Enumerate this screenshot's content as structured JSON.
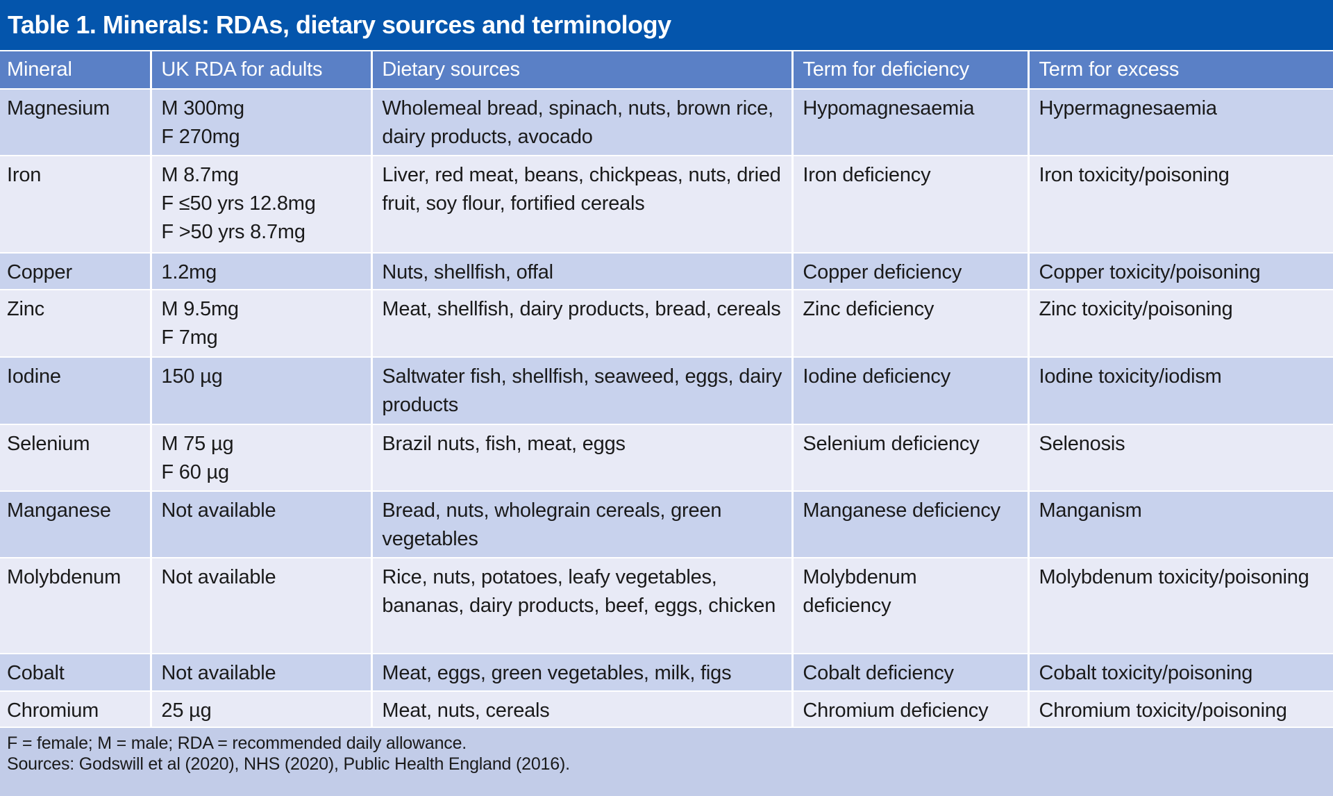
{
  "table": {
    "title": "Table 1. Minerals: RDAs, dietary sources and terminology",
    "columns": {
      "mineral": "Mineral",
      "rda": "UK RDA for adults",
      "sources": "Dietary sources",
      "deficiency": "Term for deficiency",
      "excess": "Term for excess"
    },
    "rows": [
      {
        "mineral": "Magnesium",
        "rda": [
          "M 300mg",
          "F 270mg"
        ],
        "sources": "Wholemeal bread, spinach, nuts, brown rice, dairy products, avocado",
        "deficiency": "Hypomagnesaemia",
        "excess": "Hypermagnesaemia"
      },
      {
        "mineral": "Iron",
        "rda": [
          "M 8.7mg",
          "F ≤50 yrs 12.8mg",
          "F >50 yrs 8.7mg"
        ],
        "sources": "Liver, red meat, beans, chickpeas, nuts, dried fruit, soy flour, fortified cereals",
        "deficiency": "Iron deficiency",
        "excess": "Iron toxicity/poisoning"
      },
      {
        "mineral": "Copper",
        "rda": [
          "1.2mg"
        ],
        "sources": "Nuts, shellfish, offal",
        "deficiency": "Copper deficiency",
        "excess": "Copper toxicity/poisoning"
      },
      {
        "mineral": "Zinc",
        "rda": [
          "M 9.5mg",
          "F 7mg"
        ],
        "sources": "Meat, shellfish, dairy products, bread, cereals",
        "deficiency": "Zinc deficiency",
        "excess": "Zinc toxicity/poisoning"
      },
      {
        "mineral": "Iodine",
        "rda": [
          "150 µg"
        ],
        "sources": "Saltwater fish, shellfish, seaweed, eggs, dairy products",
        "deficiency": "Iodine deficiency",
        "excess": "Iodine toxicity/iodism"
      },
      {
        "mineral": "Selenium",
        "rda": [
          "M 75 µg",
          "F 60 µg"
        ],
        "sources": "Brazil nuts, fish, meat, eggs",
        "deficiency": "Selenium deficiency",
        "excess": "Selenosis"
      },
      {
        "mineral": "Manganese",
        "rda": [
          "Not available"
        ],
        "sources": "Bread, nuts, wholegrain cereals, green vegetables",
        "deficiency": "Manganese deficiency",
        "excess": "Manganism"
      },
      {
        "mineral": "Molybdenum",
        "rda": [
          "Not available"
        ],
        "sources": "Rice, nuts, potatoes, leafy vegetables, bananas, dairy products, beef, eggs, chicken",
        "deficiency": "Molybdenum deficiency",
        "excess": "Molybdenum toxicity/poisoning"
      },
      {
        "mineral": "Cobalt",
        "rda": [
          "Not available"
        ],
        "sources": "Meat, eggs, green vegetables, milk, figs",
        "deficiency": "Cobalt deficiency",
        "excess": "Cobalt toxicity/poisoning"
      },
      {
        "mineral": "Chromium",
        "rda": [
          "25 µg"
        ],
        "sources": "Meat, nuts, cereals",
        "deficiency": "Chromium deficiency",
        "excess": "Chromium toxicity/poisoning"
      }
    ],
    "footnotes": [
      "F = female; M = male; RDA = recommended daily allowance.",
      "Sources: Godswill et al (2020), NHS (2020), Public Health England (2016)."
    ]
  },
  "colors": {
    "title_bar": "#0455AC",
    "header_row": "#5A80C6",
    "row_dark": "#C8D2ED",
    "row_light": "#E8EAF6",
    "footer_bg": "#C2CCE8",
    "text_dark": "#1A1A1A",
    "text_light": "#FFFFFF"
  }
}
